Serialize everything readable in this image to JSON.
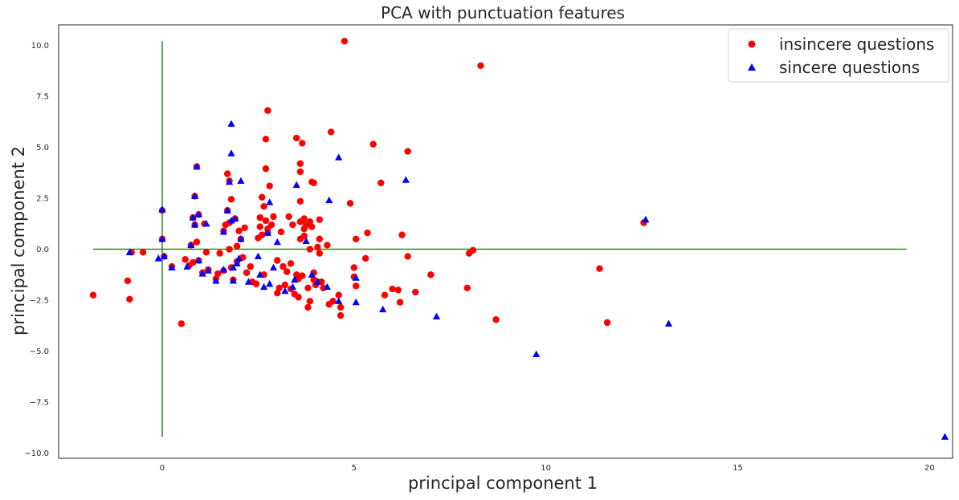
{
  "chart_data": {
    "type": "scatter",
    "title": "PCA with punctuation features",
    "xlabel": "principal component 1",
    "ylabel": "principal component 2",
    "xlim": [
      -2.7,
      20.6
    ],
    "ylim": [
      -10.25,
      11.0
    ],
    "xticks": [
      0,
      5,
      10,
      15,
      20
    ],
    "yticks": [
      -10.0,
      -7.5,
      -5.0,
      -2.5,
      0.0,
      2.5,
      5.0,
      7.5,
      10.0
    ],
    "xtick_labels": [
      "0",
      "5",
      "10",
      "15",
      "20"
    ],
    "ytick_labels": [
      "−10.0",
      "−7.5",
      "−5.0",
      "−2.5",
      "0.0",
      "2.5",
      "5.0",
      "7.5",
      "10.0"
    ],
    "grid": false,
    "legend_position": "top-right",
    "reference_lines": [
      {
        "orientation": "horizontal",
        "y": 0,
        "x_from": -1.8,
        "x_to": 19.4,
        "color": "#228B22"
      },
      {
        "orientation": "vertical",
        "x": 0,
        "y_from": -9.2,
        "y_to": 10.2,
        "color": "#228B22"
      }
    ],
    "series": [
      {
        "name": "insincere questions",
        "marker": "circle",
        "color": "#ff0000",
        "points": [
          [
            -1.8,
            -2.25
          ],
          [
            -0.9,
            -1.55
          ],
          [
            -0.85,
            -2.45
          ],
          [
            -0.5,
            -0.15
          ],
          [
            -0.8,
            -0.15
          ],
          [
            0.5,
            -3.65
          ],
          [
            0.0,
            0.5
          ],
          [
            0.0,
            1.9
          ],
          [
            0.05,
            -0.35
          ],
          [
            0.25,
            -0.85
          ],
          [
            0.6,
            -0.5
          ],
          [
            0.7,
            -0.8
          ],
          [
            0.8,
            -0.65
          ],
          [
            0.75,
            0.2
          ],
          [
            0.8,
            1.55
          ],
          [
            0.85,
            1.2
          ],
          [
            0.85,
            2.6
          ],
          [
            0.9,
            4.05
          ],
          [
            0.9,
            0.35
          ],
          [
            0.95,
            -0.55
          ],
          [
            0.95,
            1.7
          ],
          [
            1.05,
            -1.15
          ],
          [
            1.1,
            1.25
          ],
          [
            1.15,
            -0.15
          ],
          [
            1.2,
            -1.0
          ],
          [
            1.4,
            -1.45
          ],
          [
            1.45,
            -1.2
          ],
          [
            1.5,
            -0.2
          ],
          [
            1.6,
            -1.05
          ],
          [
            1.6,
            0.9
          ],
          [
            1.65,
            1.2
          ],
          [
            1.7,
            3.7
          ],
          [
            1.7,
            1.9
          ],
          [
            1.75,
            3.35
          ],
          [
            1.75,
            1.3
          ],
          [
            1.75,
            0.0
          ],
          [
            1.8,
            2.45
          ],
          [
            1.8,
            -0.9
          ],
          [
            1.85,
            -1.5
          ],
          [
            1.9,
            1.5
          ],
          [
            1.95,
            0.15
          ],
          [
            1.95,
            -0.6
          ],
          [
            2.0,
            0.9
          ],
          [
            2.05,
            0.5
          ],
          [
            2.1,
            -0.4
          ],
          [
            2.15,
            1.05
          ],
          [
            2.2,
            -1.15
          ],
          [
            2.3,
            -0.85
          ],
          [
            2.35,
            -1.6
          ],
          [
            2.45,
            -1.7
          ],
          [
            2.5,
            0.55
          ],
          [
            2.55,
            1.1
          ],
          [
            2.55,
            1.55
          ],
          [
            2.6,
            0.7
          ],
          [
            2.6,
            2.55
          ],
          [
            2.65,
            -1.25
          ],
          [
            2.65,
            2.1
          ],
          [
            2.7,
            3.95
          ],
          [
            2.7,
            5.4
          ],
          [
            2.75,
            6.8
          ],
          [
            2.7,
            1.4
          ],
          [
            2.75,
            0.8
          ],
          [
            2.75,
            1.0
          ],
          [
            2.8,
            3.1
          ],
          [
            2.85,
            1.2
          ],
          [
            2.9,
            1.6
          ],
          [
            3.0,
            -0.55
          ],
          [
            3.0,
            -2.15
          ],
          [
            3.05,
            -1.9
          ],
          [
            3.1,
            0.85
          ],
          [
            3.15,
            -0.85
          ],
          [
            3.2,
            -1.75
          ],
          [
            3.25,
            -1.1
          ],
          [
            3.3,
            1.6
          ],
          [
            3.35,
            -0.7
          ],
          [
            3.35,
            -1.95
          ],
          [
            3.4,
            1.2
          ],
          [
            3.45,
            -2.2
          ],
          [
            3.5,
            5.45
          ],
          [
            3.5,
            -1.25
          ],
          [
            3.55,
            -1.45
          ],
          [
            3.55,
            -2.35
          ],
          [
            3.6,
            4.2
          ],
          [
            3.6,
            3.8
          ],
          [
            3.6,
            2.35
          ],
          [
            3.6,
            1.35
          ],
          [
            3.6,
            0.5
          ],
          [
            3.65,
            5.2
          ],
          [
            3.65,
            -1.3
          ],
          [
            3.7,
            1.5
          ],
          [
            3.7,
            1.0
          ],
          [
            3.7,
            0.65
          ],
          [
            3.75,
            1.2
          ],
          [
            3.8,
            -1.9
          ],
          [
            3.8,
            -2.85
          ],
          [
            3.85,
            0.0
          ],
          [
            3.85,
            1.35
          ],
          [
            3.85,
            -2.55
          ],
          [
            3.9,
            3.3
          ],
          [
            3.9,
            1.1
          ],
          [
            3.95,
            3.25
          ],
          [
            3.95,
            -1.15
          ],
          [
            3.95,
            -1.5
          ],
          [
            4.0,
            -1.75
          ],
          [
            4.05,
            0.1
          ],
          [
            4.05,
            -1.6
          ],
          [
            4.1,
            1.45
          ],
          [
            4.1,
            0.5
          ],
          [
            4.1,
            -0.2
          ],
          [
            4.15,
            -1.6
          ],
          [
            4.2,
            -1.9
          ],
          [
            4.3,
            0.2
          ],
          [
            4.35,
            -2.7
          ],
          [
            4.4,
            5.75
          ],
          [
            4.45,
            -2.55
          ],
          [
            4.6,
            -2.25
          ],
          [
            4.65,
            -3.25
          ],
          [
            4.65,
            -2.85
          ],
          [
            4.75,
            10.2
          ],
          [
            4.9,
            2.25
          ],
          [
            5.0,
            -0.9
          ],
          [
            5.0,
            -1.35
          ],
          [
            5.05,
            0.5
          ],
          [
            5.05,
            -1.8
          ],
          [
            5.3,
            -0.45
          ],
          [
            5.35,
            0.8
          ],
          [
            5.5,
            5.15
          ],
          [
            5.7,
            3.25
          ],
          [
            5.8,
            -2.25
          ],
          [
            6.0,
            -1.95
          ],
          [
            6.15,
            -2.0
          ],
          [
            6.25,
            0.7
          ],
          [
            6.2,
            -2.6
          ],
          [
            6.4,
            -0.35
          ],
          [
            6.4,
            4.8
          ],
          [
            6.6,
            -2.1
          ],
          [
            7.0,
            -1.25
          ],
          [
            7.95,
            -1.9
          ],
          [
            8.0,
            -0.2
          ],
          [
            8.1,
            -0.05
          ],
          [
            8.3,
            9.0
          ],
          [
            8.7,
            -3.45
          ],
          [
            11.4,
            -0.95
          ],
          [
            11.6,
            -3.6
          ],
          [
            12.55,
            1.3
          ]
        ]
      },
      {
        "name": "sincere questions",
        "marker": "triangle",
        "color": "#0000ff",
        "points": [
          [
            -0.85,
            -0.15
          ],
          [
            -0.1,
            -0.45
          ],
          [
            0.0,
            0.5
          ],
          [
            0.0,
            1.95
          ],
          [
            0.05,
            -0.35
          ],
          [
            0.25,
            -0.9
          ],
          [
            0.65,
            -0.85
          ],
          [
            0.75,
            0.2
          ],
          [
            0.8,
            1.55
          ],
          [
            0.85,
            1.2
          ],
          [
            0.85,
            2.6
          ],
          [
            0.9,
            4.05
          ],
          [
            0.95,
            -0.55
          ],
          [
            0.95,
            1.7
          ],
          [
            1.05,
            -1.2
          ],
          [
            1.15,
            1.25
          ],
          [
            1.2,
            -1.05
          ],
          [
            1.4,
            -1.55
          ],
          [
            1.6,
            -1.0
          ],
          [
            1.6,
            0.85
          ],
          [
            1.7,
            1.9
          ],
          [
            1.75,
            3.3
          ],
          [
            1.8,
            6.15
          ],
          [
            1.8,
            4.7
          ],
          [
            1.8,
            1.4
          ],
          [
            1.85,
            -1.55
          ],
          [
            1.85,
            -0.9
          ],
          [
            1.9,
            1.5
          ],
          [
            1.95,
            -0.7
          ],
          [
            2.0,
            -0.45
          ],
          [
            2.05,
            0.5
          ],
          [
            2.05,
            3.35
          ],
          [
            2.25,
            -1.6
          ],
          [
            2.5,
            -0.35
          ],
          [
            2.55,
            -1.25
          ],
          [
            2.65,
            -1.85
          ],
          [
            2.75,
            0.8
          ],
          [
            2.8,
            2.3
          ],
          [
            2.8,
            -1.7
          ],
          [
            2.9,
            -0.9
          ],
          [
            3.0,
            0.35
          ],
          [
            3.2,
            -2.05
          ],
          [
            3.4,
            -1.85
          ],
          [
            3.45,
            -1.5
          ],
          [
            3.5,
            3.15
          ],
          [
            3.75,
            0.4
          ],
          [
            3.9,
            -1.25
          ],
          [
            4.05,
            -1.6
          ],
          [
            4.3,
            -1.85
          ],
          [
            4.35,
            2.4
          ],
          [
            4.6,
            4.5
          ],
          [
            4.6,
            -2.55
          ],
          [
            5.05,
            -1.4
          ],
          [
            5.05,
            -2.6
          ],
          [
            5.75,
            -2.95
          ],
          [
            6.35,
            3.4
          ],
          [
            7.15,
            -3.3
          ],
          [
            9.75,
            -5.15
          ],
          [
            12.6,
            1.45
          ],
          [
            13.2,
            -3.65
          ],
          [
            20.4,
            -9.2
          ]
        ]
      }
    ]
  }
}
